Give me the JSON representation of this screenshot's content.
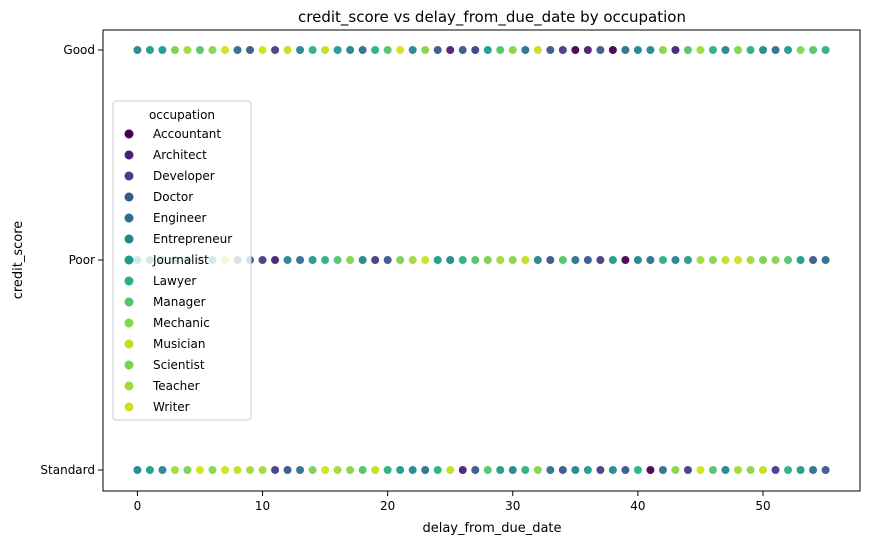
{
  "chart_data": {
    "type": "scatter",
    "title": "credit_score vs delay_from_due_date by occupation",
    "xlabel": "delay_from_due_date",
    "ylabel": "credit_score",
    "xlim": [
      -2.75,
      57.75
    ],
    "x_ticks": [
      0,
      10,
      20,
      30,
      40,
      50
    ],
    "categories_y": [
      "Good",
      "Poor",
      "Standard"
    ],
    "grid": false,
    "legend": {
      "title": "occupation",
      "placement": "center-left",
      "entries": [
        {
          "name": "Accountant",
          "color": "#440154"
        },
        {
          "name": "Architect",
          "color": "#482173"
        },
        {
          "name": "Developer",
          "color": "#433e85"
        },
        {
          "name": "Doctor",
          "color": "#38598c"
        },
        {
          "name": "Engineer",
          "color": "#2d708e"
        },
        {
          "name": "Entrepreneur",
          "color": "#25858e"
        },
        {
          "name": "Journalist",
          "color": "#1e9b8a"
        },
        {
          "name": "Lawyer",
          "color": "#2ab07f"
        },
        {
          "name": "Manager",
          "color": "#52c569"
        },
        {
          "name": "Mechanic",
          "color": "#86d549"
        },
        {
          "name": "Musician",
          "color": "#c2df23"
        },
        {
          "name": "Scientist",
          "color": "#7ad151"
        },
        {
          "name": "Teacher",
          "color": "#a0da39"
        },
        {
          "name": "Writer",
          "color": "#d0e11c"
        }
      ]
    },
    "series": [
      {
        "category": "Good",
        "x": [
          0,
          1,
          2,
          3,
          4,
          5,
          6,
          7,
          8,
          9,
          10,
          11,
          12,
          13,
          14,
          15,
          16,
          17,
          18,
          19,
          20,
          21,
          22,
          23,
          24,
          25,
          26,
          27,
          28,
          29,
          30,
          31,
          32,
          33,
          34,
          35,
          36,
          37,
          38,
          39,
          40,
          41,
          42,
          43,
          44,
          45,
          46,
          47,
          48,
          49,
          50,
          51,
          52,
          53,
          54,
          55
        ],
        "occ": [
          5,
          6,
          6,
          11,
          12,
          8,
          9,
          13,
          4,
          3,
          13,
          2,
          10,
          5,
          7,
          10,
          6,
          5,
          4,
          7,
          8,
          13,
          5,
          9,
          3,
          1,
          3,
          2,
          6,
          8,
          9,
          4,
          10,
          3,
          2,
          0,
          1,
          3,
          0,
          4,
          5,
          5,
          9,
          1,
          8,
          12,
          7,
          5,
          9,
          7,
          5,
          4,
          6,
          9,
          8,
          7
        ]
      },
      {
        "category": "Poor",
        "x": [
          0,
          1,
          2,
          3,
          4,
          5,
          6,
          7,
          8,
          9,
          10,
          11,
          12,
          13,
          14,
          15,
          16,
          17,
          18,
          19,
          20,
          21,
          22,
          23,
          24,
          25,
          26,
          27,
          28,
          29,
          30,
          31,
          32,
          33,
          34,
          35,
          36,
          37,
          38,
          39,
          40,
          41,
          42,
          43,
          44,
          45,
          46,
          47,
          48,
          49,
          50,
          51,
          52,
          53,
          54,
          55
        ],
        "occ": [
          4,
          5,
          6,
          6,
          7,
          8,
          5,
          10,
          4,
          3,
          2,
          1,
          5,
          4,
          6,
          7,
          8,
          9,
          5,
          2,
          3,
          11,
          12,
          13,
          6,
          5,
          7,
          8,
          11,
          12,
          9,
          10,
          5,
          3,
          8,
          4,
          3,
          2,
          6,
          0,
          5,
          4,
          7,
          5,
          6,
          12,
          9,
          10,
          13,
          12,
          11,
          9,
          8,
          6,
          3,
          4
        ]
      },
      {
        "category": "Standard",
        "x": [
          0,
          1,
          2,
          3,
          4,
          5,
          6,
          7,
          8,
          9,
          10,
          11,
          12,
          13,
          14,
          15,
          16,
          17,
          18,
          19,
          20,
          21,
          22,
          23,
          24,
          25,
          26,
          27,
          28,
          29,
          30,
          31,
          32,
          33,
          34,
          35,
          36,
          37,
          38,
          39,
          40,
          41,
          42,
          43,
          44,
          45,
          46,
          47,
          48,
          49,
          50,
          51,
          52,
          53,
          54,
          55
        ],
        "occ": [
          5,
          6,
          5,
          12,
          11,
          13,
          9,
          13,
          10,
          12,
          12,
          2,
          3,
          4,
          11,
          13,
          12,
          9,
          8,
          10,
          7,
          6,
          5,
          4,
          7,
          10,
          1,
          3,
          8,
          6,
          5,
          7,
          9,
          4,
          3,
          5,
          6,
          2,
          5,
          3,
          7,
          0,
          4,
          9,
          2,
          13,
          8,
          5,
          12,
          9,
          10,
          2,
          7,
          6,
          4,
          3
        ]
      }
    ]
  }
}
